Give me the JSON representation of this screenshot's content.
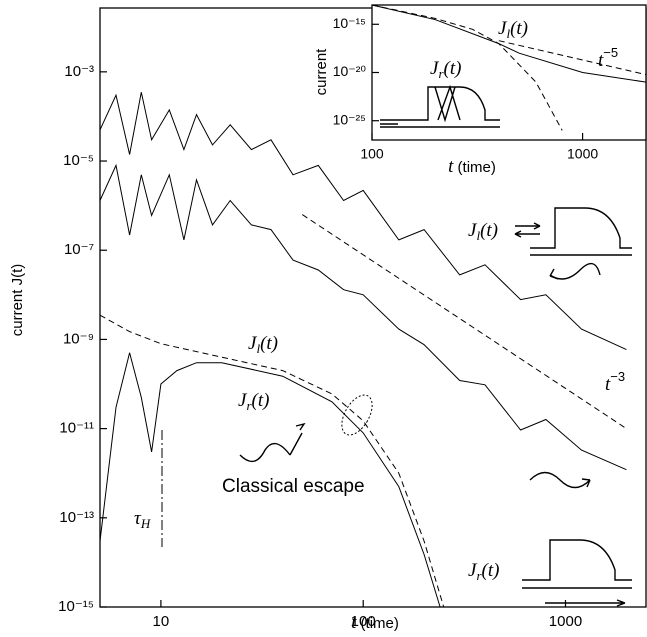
{
  "chart_data": [
    {
      "type": "line",
      "log_x": true,
      "log_y": true,
      "x_label": {
        "text": "t",
        "tail": " (time)"
      },
      "y_label": "current  J(t)",
      "xlim": [
        5,
        2500
      ],
      "ylim": [
        1e-15,
        0.027
      ],
      "xticks": [
        10,
        100,
        1000
      ],
      "yticks": [
        {
          "value": 1e-15,
          "label": "10⁻¹⁵"
        },
        {
          "value": 1e-13,
          "label": "10⁻¹³"
        },
        {
          "value": 1e-11,
          "label": "10⁻¹¹"
        },
        {
          "value": 1e-09,
          "label": "10⁻⁹"
        },
        {
          "value": 1e-07,
          "label": "10⁻⁷"
        },
        {
          "value": 1e-05,
          "label": "10⁻⁵"
        },
        {
          "value": 0.001,
          "label": "10⁻³"
        }
      ],
      "series": [
        {
          "color": "#000000",
          "dash": false,
          "x": [
            5,
            6,
            7,
            8,
            9,
            11,
            13,
            15,
            18,
            22,
            28,
            35,
            45,
            60,
            80,
            100,
            150,
            200,
            300,
            400,
            600,
            800,
            1200,
            2000
          ],
          "values": [
            5e-05,
            0.0003,
            1.4e-05,
            0.00035,
            3e-05,
            0.00014,
            1.8e-05,
            0.00011,
            2.3e-05,
            6.5e-05,
            1.8e-05,
            3e-05,
            4.9e-06,
            8e-06,
            1.3e-06,
            2.2e-06,
            1.7e-07,
            2.9e-07,
            2.8e-08,
            4.7e-08,
            7.8e-09,
            1e-08,
            1.7e-09,
            5.9e-10
          ]
        },
        {
          "color": "#000000",
          "dash": false,
          "x": [
            5,
            6,
            7,
            8,
            9,
            11,
            13,
            15,
            18,
            22,
            28,
            35,
            45,
            60,
            80,
            100,
            150,
            200,
            300,
            400,
            600,
            800,
            1200,
            2000
          ],
          "values": [
            1.3e-06,
            8e-06,
            2.2e-07,
            4.9e-06,
            6e-07,
            4.9e-06,
            1.7e-07,
            3.8e-06,
            3.7e-07,
            1.3e-06,
            3.7e-07,
            2.9e-07,
            6e-08,
            3.6e-08,
            1.3e-08,
            1e-08,
            1.7e-09,
            7.6e-10,
            1.2e-10,
            9.6e-11,
            9.3e-12,
            1.6e-11,
            3.3e-12,
            1.2e-12
          ]
        },
        {
          "color": "#000000",
          "dash": true,
          "x": [
            50,
            2000
          ],
          "values": [
            6.3e-07,
            1e-11
          ]
        },
        {
          "color": "#000000",
          "dash": true,
          "x": [
            5,
            7,
            10,
            20,
            40,
            70,
            100,
            150,
            200,
            250
          ],
          "values": [
            3.5e-09,
            1.5e-09,
            8e-10,
            4e-10,
            2e-10,
            6e-11,
            1.5e-11,
            1e-12,
            3e-14,
            1e-15
          ]
        },
        {
          "color": "#000000",
          "dash": false,
          "x": [
            5,
            6,
            7,
            8,
            9,
            10,
            12,
            15,
            20,
            40,
            70,
            100,
            150,
            200,
            240
          ],
          "values": [
            3e-14,
            3e-11,
            5e-10,
            5e-11,
            3e-12,
            1e-10,
            2e-10,
            3e-10,
            3e-10,
            1.5e-10,
            4e-11,
            8e-12,
            5e-13,
            1.5e-14,
            1e-15
          ]
        }
      ],
      "annotations": [
        {
          "text": "J",
          "sub": "l",
          "tail": "(t)"
        },
        {
          "text": "J",
          "sub": "l",
          "tail": "(t)"
        },
        {
          "text": "J",
          "sub": "r",
          "tail": "(t)"
        },
        {
          "text": "J",
          "sub": "r",
          "tail": "(t)"
        },
        {
          "text": "t",
          "sup": "−3"
        },
        {
          "text": "Classical escape"
        },
        {
          "text": "τ",
          "sub": "H"
        }
      ]
    },
    {
      "type": "line",
      "log_x": true,
      "log_y": true,
      "x_label": {
        "text": "t",
        "tail": " (time)"
      },
      "y_label": "current",
      "xlim": [
        100,
        2000
      ],
      "ylim": [
        1e-27,
        1e-13
      ],
      "xticks": [
        100,
        1000
      ],
      "yticks": [
        {
          "value": 1e-25,
          "label": "10⁻²⁵"
        },
        {
          "value": 1e-20,
          "label": "10⁻²⁰"
        },
        {
          "value": 1e-15,
          "label": "10⁻¹⁵"
        }
      ],
      "series": [
        {
          "color": "#000000",
          "dash": false,
          "x": [
            100,
            200,
            400,
            500,
            1000,
            2000
          ],
          "values": [
            1e-13,
            3e-15,
            1e-17,
            1e-18,
            1e-20,
            1e-21
          ]
        },
        {
          "color": "#000000",
          "dash": true,
          "x": [
            100,
            200,
            300,
            400,
            600,
            800
          ],
          "values": [
            1e-13,
            4e-15,
            3e-16,
            1e-17,
            1e-21,
            1e-26
          ]
        },
        {
          "color": "#000000",
          "dash": true,
          "x": [
            400,
            2000
          ],
          "values": [
            2e-17,
            6e-21
          ]
        }
      ],
      "annotations": [
        {
          "text": "J",
          "sub": "l",
          "tail": "(t)"
        },
        {
          "text": "J",
          "sub": "r",
          "tail": "(t)"
        },
        {
          "text": "t",
          "sup": "−5"
        }
      ]
    }
  ]
}
